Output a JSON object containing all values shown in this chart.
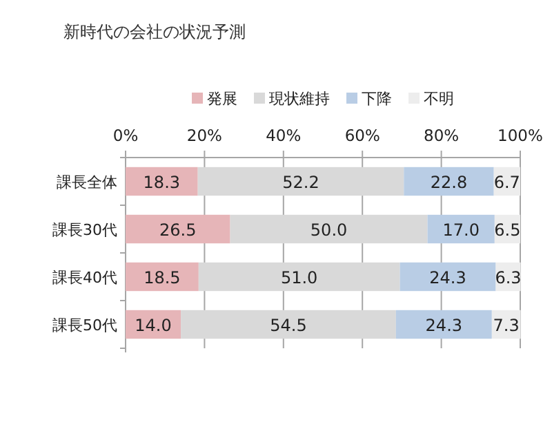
{
  "chart_data": {
    "type": "bar",
    "title": "新時代の会社の状況予測",
    "orientation": "horizontal",
    "stacked": true,
    "categories": [
      "課長全体",
      "課長30代",
      "課長40代",
      "課長50代"
    ],
    "series": [
      {
        "name": "発展",
        "color": "#e6b5b8",
        "values": [
          18.3,
          26.5,
          18.5,
          14.0
        ],
        "value_labels": [
          "18.3",
          "26.5",
          "18.5",
          "14.0"
        ]
      },
      {
        "name": "現状維持",
        "color": "#d9d9d9",
        "values": [
          52.2,
          50.0,
          51.0,
          54.5
        ],
        "value_labels": [
          "52.2",
          "50.0",
          "51.0",
          "54.5"
        ]
      },
      {
        "name": "下降",
        "color": "#b9cde5",
        "values": [
          22.8,
          17.0,
          24.3,
          24.3
        ],
        "value_labels": [
          "22.8",
          "17.0",
          "24.3",
          "24.3"
        ]
      },
      {
        "name": "不明",
        "color": "#ededed",
        "values": [
          6.7,
          6.5,
          6.3,
          7.3
        ],
        "value_labels": [
          "6.7",
          "6.5",
          "6.3",
          "7.3"
        ]
      }
    ],
    "xlim": [
      0,
      100
    ],
    "xticks": [
      {
        "value": 0,
        "label": "0%"
      },
      {
        "value": 20,
        "label": "20%"
      },
      {
        "value": 40,
        "label": "40%"
      },
      {
        "value": 60,
        "label": "60%"
      },
      {
        "value": 80,
        "label": "80%"
      },
      {
        "value": 100,
        "label": "100%"
      }
    ],
    "grid": "x",
    "legend": "top"
  }
}
